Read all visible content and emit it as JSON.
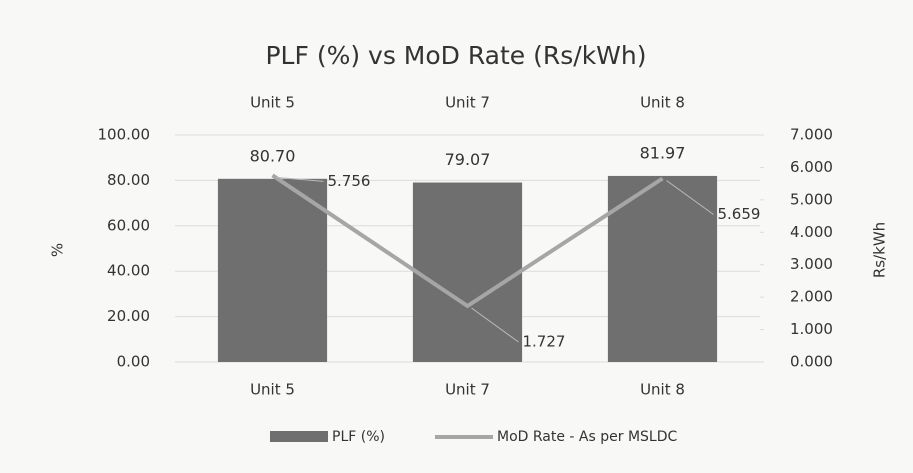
{
  "chart_data": {
    "type": "bar",
    "title": "PLF (%) vs MoD Rate (Rs/kWh)",
    "categories": [
      "Unit 5",
      "Unit 7",
      "Unit 8"
    ],
    "y_label": "%",
    "y2_label": "Rs/kWh",
    "series": [
      {
        "name": "PLF (%)",
        "type": "bar",
        "color": "#6f6f6f",
        "values": [
          80.7,
          79.07,
          81.97
        ],
        "value_labels": [
          "80.70",
          "79.07",
          "81.97"
        ]
      },
      {
        "name": "MoD Rate - As per MSLDC",
        "type": "line",
        "axis": "y2",
        "color": "#a6a6a6",
        "values": [
          5.756,
          1.727,
          5.659
        ]
      }
    ],
    "ylim": [
      0,
      100
    ],
    "yticks": [
      {
        "value": 0,
        "label": "0.00"
      },
      {
        "value": 20,
        "label": "20.00"
      },
      {
        "value": 40,
        "label": "40.00"
      },
      {
        "value": 60,
        "label": "60.00"
      },
      {
        "value": 80,
        "label": "80.00"
      },
      {
        "value": 100,
        "label": "100.00"
      }
    ],
    "y2lim": [
      0,
      7
    ],
    "y2ticks": [
      {
        "value": 0,
        "label": "0.000"
      },
      {
        "value": 1,
        "label": "1.000"
      },
      {
        "value": 2,
        "label": "2.000"
      },
      {
        "value": 3,
        "label": "3.000"
      },
      {
        "value": 4,
        "label": "4.000"
      },
      {
        "value": 5,
        "label": "5.000"
      },
      {
        "value": 6,
        "label": "6.000"
      },
      {
        "value": 7,
        "label": "7.000"
      }
    ],
    "grid": true
  }
}
